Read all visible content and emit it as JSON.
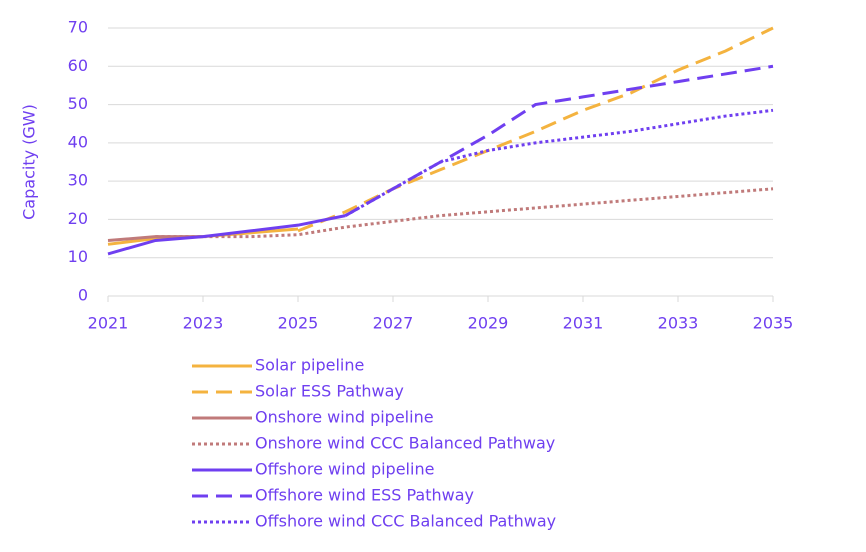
{
  "chart_data": {
    "type": "line",
    "y_label": "Capacity (GW)",
    "x": [
      2021,
      2022,
      2023,
      2024,
      2025,
      2026,
      2027,
      2028,
      2029,
      2030,
      2031,
      2032,
      2033,
      2034,
      2035
    ],
    "xlim": [
      2021,
      2035
    ],
    "xticks": [
      2021,
      2023,
      2025,
      2027,
      2029,
      2031,
      2033,
      2035
    ],
    "ylim": [
      0,
      70
    ],
    "yticks": [
      0,
      10,
      20,
      30,
      40,
      50,
      60,
      70
    ],
    "grid": true,
    "series": [
      {
        "name": "Solar pipeline",
        "color": "#f4b33f",
        "style": "solid",
        "values": [
          13.5,
          15,
          15.5,
          16.5,
          17.5,
          null,
          null,
          null,
          null,
          null,
          null,
          null,
          null,
          null,
          null
        ]
      },
      {
        "name": "Solar ESS Pathway",
        "color": "#f4b33f",
        "style": "dashed",
        "values": [
          null,
          null,
          null,
          null,
          17,
          22,
          28,
          33,
          38,
          43,
          48.5,
          53,
          59,
          64,
          70
        ]
      },
      {
        "name": "Onshore wind pipeline",
        "color": "#c07a7a",
        "style": "solid",
        "values": [
          14.5,
          15.5,
          15.5,
          null,
          null,
          null,
          null,
          null,
          null,
          null,
          null,
          null,
          null,
          null,
          null
        ]
      },
      {
        "name": "Onshore wind CCC Balanced Pathway",
        "color": "#c07a7a",
        "style": "dotted",
        "values": [
          null,
          15.5,
          15.5,
          15.5,
          16,
          18,
          19.5,
          21,
          22,
          23,
          24,
          25,
          26,
          27,
          28
        ]
      },
      {
        "name": "Offshore wind pipeline",
        "color": "#6f3ff0",
        "style": "solid",
        "values": [
          11,
          14.5,
          15.5,
          17,
          18.5,
          21,
          null,
          null,
          null,
          null,
          null,
          null,
          null,
          null,
          null
        ]
      },
      {
        "name": "Offshore wind ESS Pathway",
        "color": "#6f3ff0",
        "style": "dashed",
        "values": [
          null,
          null,
          null,
          null,
          null,
          21,
          28,
          35,
          42,
          50,
          52,
          54,
          56,
          58,
          60
        ]
      },
      {
        "name": "Offshore wind CCC Balanced Pathway",
        "color": "#6f3ff0",
        "style": "dotted",
        "values": [
          null,
          null,
          null,
          null,
          null,
          21,
          28,
          35,
          38,
          40,
          41.5,
          43,
          45,
          47,
          48.5
        ]
      }
    ]
  }
}
